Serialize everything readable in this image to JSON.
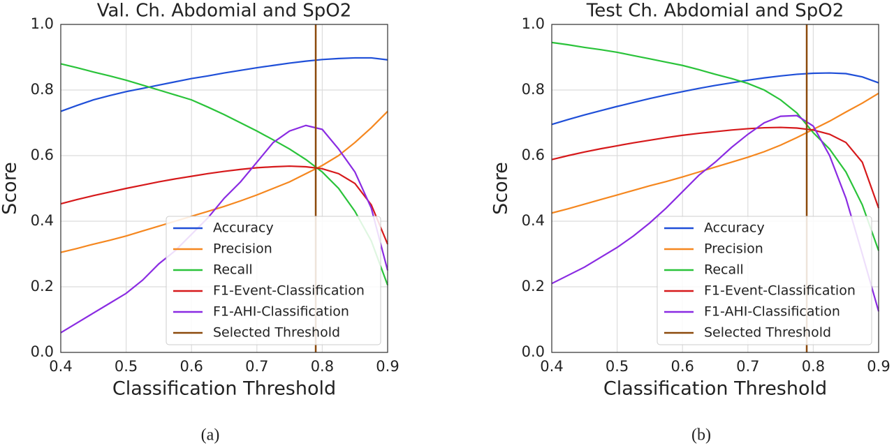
{
  "chart_data": [
    {
      "type": "line",
      "title": "Val. Ch. Abdomial and SpO2",
      "xlabel": "Classification Threshold",
      "ylabel": "Score",
      "caption": "(a)",
      "x": [
        0.4,
        0.425,
        0.45,
        0.475,
        0.5,
        0.525,
        0.55,
        0.575,
        0.6,
        0.625,
        0.65,
        0.675,
        0.7,
        0.725,
        0.75,
        0.775,
        0.8,
        0.825,
        0.85,
        0.875,
        0.9
      ],
      "xlim": [
        0.4,
        0.9
      ],
      "xticks": [
        0.4,
        0.5,
        0.6,
        0.7,
        0.8,
        0.9
      ],
      "ylim": [
        0,
        1
      ],
      "yticks": [
        {
          "value": 0,
          "label": "0.0"
        },
        0.2,
        0.4,
        0.6,
        0.8,
        {
          "value": 1,
          "label": "1.0"
        }
      ],
      "grid": true,
      "legend": "lower right",
      "series": [
        {
          "name": "Accuracy",
          "color": "#1f4fd8",
          "values": [
            0.735,
            0.753,
            0.77,
            0.783,
            0.795,
            0.805,
            0.815,
            0.825,
            0.835,
            0.843,
            0.852,
            0.86,
            0.868,
            0.875,
            0.882,
            0.888,
            0.893,
            0.896,
            0.898,
            0.898,
            0.892
          ]
        },
        {
          "name": "Precision",
          "color": "#f5871f",
          "values": [
            0.305,
            0.317,
            0.33,
            0.342,
            0.355,
            0.37,
            0.385,
            0.4,
            0.415,
            0.43,
            0.445,
            0.462,
            0.48,
            0.5,
            0.52,
            0.545,
            0.57,
            0.6,
            0.64,
            0.685,
            0.735
          ]
        },
        {
          "name": "Recall",
          "color": "#2ac33a",
          "values": [
            0.88,
            0.868,
            0.855,
            0.843,
            0.83,
            0.815,
            0.8,
            0.785,
            0.77,
            0.748,
            0.725,
            0.7,
            0.675,
            0.648,
            0.62,
            0.588,
            0.55,
            0.5,
            0.43,
            0.34,
            0.205
          ]
        },
        {
          "name": "F1-Event-Classification",
          "color": "#d6191b",
          "values": [
            0.453,
            0.466,
            0.478,
            0.489,
            0.5,
            0.51,
            0.52,
            0.529,
            0.537,
            0.545,
            0.552,
            0.558,
            0.563,
            0.566,
            0.568,
            0.566,
            0.56,
            0.545,
            0.515,
            0.45,
            0.33
          ]
        },
        {
          "name": "F1-AHI-Classification",
          "color": "#8a2be2",
          "values": [
            0.06,
            0.09,
            0.12,
            0.15,
            0.18,
            0.22,
            0.27,
            0.31,
            0.36,
            0.41,
            0.47,
            0.52,
            0.58,
            0.64,
            0.675,
            0.692,
            0.68,
            0.62,
            0.55,
            0.44,
            0.25
          ]
        }
      ],
      "threshold": {
        "name": "Selected Threshold",
        "value": 0.79,
        "color": "#8c4a0c"
      }
    },
    {
      "type": "line",
      "title": "Test Ch. Abdomial and SpO2",
      "xlabel": "Classification Threshold",
      "ylabel": "Score",
      "caption": "(b)",
      "x": [
        0.4,
        0.425,
        0.45,
        0.475,
        0.5,
        0.525,
        0.55,
        0.575,
        0.6,
        0.625,
        0.65,
        0.675,
        0.7,
        0.725,
        0.75,
        0.775,
        0.8,
        0.825,
        0.85,
        0.875,
        0.9
      ],
      "xlim": [
        0.4,
        0.9
      ],
      "xticks": [
        0.4,
        0.5,
        0.6,
        0.7,
        0.8,
        0.9
      ],
      "ylim": [
        0,
        1
      ],
      "yticks": [
        {
          "value": 0,
          "label": "0.0"
        },
        0.2,
        0.4,
        0.6,
        0.8,
        {
          "value": 1,
          "label": "1.0"
        }
      ],
      "grid": true,
      "legend": "lower right",
      "series": [
        {
          "name": "Accuracy",
          "color": "#1f4fd8",
          "values": [
            0.695,
            0.71,
            0.724,
            0.737,
            0.75,
            0.762,
            0.774,
            0.785,
            0.795,
            0.805,
            0.814,
            0.822,
            0.83,
            0.837,
            0.843,
            0.848,
            0.851,
            0.852,
            0.85,
            0.84,
            0.822
          ]
        },
        {
          "name": "Precision",
          "color": "#f5871f",
          "values": [
            0.425,
            0.438,
            0.452,
            0.466,
            0.48,
            0.494,
            0.508,
            0.521,
            0.535,
            0.55,
            0.565,
            0.58,
            0.595,
            0.612,
            0.632,
            0.655,
            0.68,
            0.705,
            0.733,
            0.76,
            0.79
          ]
        },
        {
          "name": "Recall",
          "color": "#2ac33a",
          "values": [
            0.945,
            0.938,
            0.93,
            0.923,
            0.915,
            0.905,
            0.895,
            0.885,
            0.875,
            0.862,
            0.848,
            0.835,
            0.82,
            0.8,
            0.77,
            0.73,
            0.67,
            0.62,
            0.55,
            0.45,
            0.31
          ]
        },
        {
          "name": "F1-Event-Classification",
          "color": "#d6191b",
          "values": [
            0.588,
            0.6,
            0.611,
            0.621,
            0.63,
            0.639,
            0.647,
            0.655,
            0.662,
            0.668,
            0.673,
            0.678,
            0.682,
            0.685,
            0.686,
            0.684,
            0.678,
            0.665,
            0.64,
            0.58,
            0.44
          ]
        },
        {
          "name": "F1-AHI-Classification",
          "color": "#8a2be2",
          "values": [
            0.21,
            0.235,
            0.26,
            0.29,
            0.32,
            0.355,
            0.395,
            0.44,
            0.49,
            0.54,
            0.58,
            0.625,
            0.665,
            0.7,
            0.72,
            0.722,
            0.69,
            0.6,
            0.47,
            0.3,
            0.125
          ]
        }
      ],
      "threshold": {
        "name": "Selected Threshold",
        "value": 0.79,
        "color": "#8c4a0c"
      }
    }
  ]
}
